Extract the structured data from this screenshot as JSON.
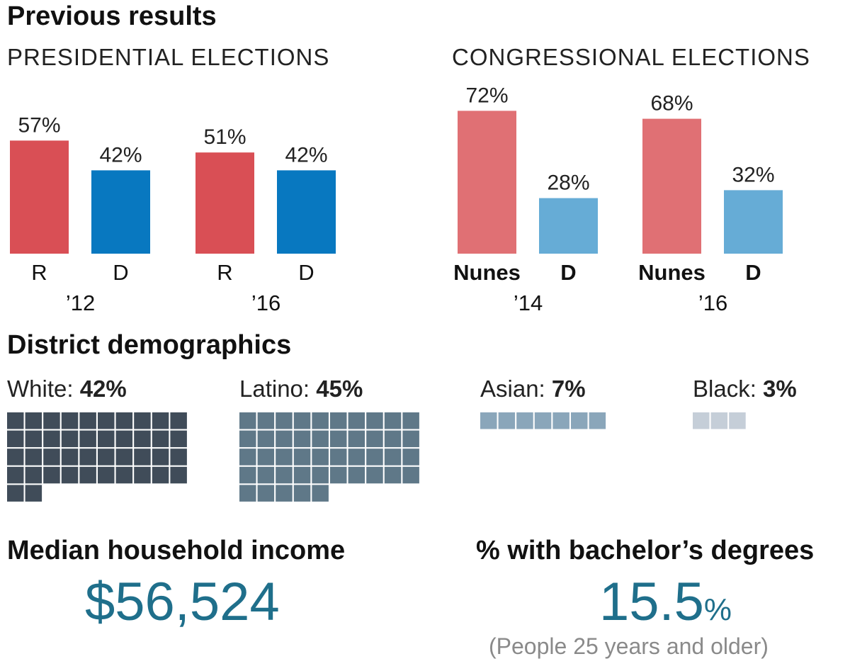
{
  "section_previous": "Previous results",
  "presidential": {
    "title": "PRESIDENTIAL ELECTIONS",
    "groups": [
      {
        "year": "’12",
        "bars": [
          {
            "party": "R",
            "value": 57,
            "label": "57%"
          },
          {
            "party": "D",
            "value": 42,
            "label": "42%"
          }
        ]
      },
      {
        "year": "’16",
        "bars": [
          {
            "party": "R",
            "value": 51,
            "label": "51%"
          },
          {
            "party": "D",
            "value": 42,
            "label": "42%"
          }
        ]
      }
    ]
  },
  "congressional": {
    "title": "CONGRESSIONAL ELECTIONS",
    "groups": [
      {
        "year": "’14",
        "bars": [
          {
            "party": "Nunes",
            "value": 72,
            "label": "72%"
          },
          {
            "party": "D",
            "value": 28,
            "label": "28%"
          }
        ]
      },
      {
        "year": "’16",
        "bars": [
          {
            "party": "Nunes",
            "value": 68,
            "label": "68%"
          },
          {
            "party": "D",
            "value": 32,
            "label": "32%"
          }
        ]
      }
    ]
  },
  "colors": {
    "pres_r": "#d94f55",
    "pres_d": "#0878c0",
    "cong_r": "#e07074",
    "cong_d": "#66acd6",
    "white": "#404c59",
    "latino": "#5f7888",
    "asian": "#8aa6ba",
    "black": "#c5ced8",
    "accent": "#1f6f8b"
  },
  "chart_data": [
    {
      "type": "bar",
      "title": "PRESIDENTIAL ELECTIONS",
      "categories": [
        "R ’12",
        "D ’12",
        "R ’16",
        "D ’16"
      ],
      "values": [
        57,
        42,
        51,
        42
      ],
      "ylim": [
        0,
        100
      ]
    },
    {
      "type": "bar",
      "title": "CONGRESSIONAL ELECTIONS",
      "categories": [
        "Nunes ’14",
        "D ’14",
        "Nunes ’16",
        "D ’16"
      ],
      "values": [
        72,
        28,
        68,
        32
      ],
      "ylim": [
        0,
        100
      ]
    }
  ],
  "demographics": {
    "title": "District demographics",
    "groups": [
      {
        "name": "White:",
        "value": "42%",
        "squares": 42,
        "color_key": "white"
      },
      {
        "name": "Latino:",
        "value": "45%",
        "squares": 45,
        "color_key": "latino"
      },
      {
        "name": "Asian:",
        "value": "7%",
        "squares": 7,
        "color_key": "asian"
      },
      {
        "name": "Black:",
        "value": "3%",
        "squares": 3,
        "color_key": "black"
      }
    ]
  },
  "income": {
    "title": "Median household income",
    "value": "$56,524"
  },
  "education": {
    "title": "% with bachelor’s degrees",
    "value": "15.5",
    "unit": "%",
    "note": "(People 25 years and older)"
  }
}
